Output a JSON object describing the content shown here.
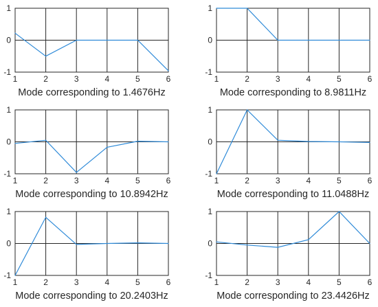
{
  "line_color": "#2e8ad8",
  "chart_data": [
    {
      "type": "line",
      "title": "Mode corresponding to 1.4676Hz",
      "x": [
        1,
        2,
        3,
        4,
        5,
        6
      ],
      "y": [
        0.22,
        -0.5,
        0,
        0,
        0,
        -0.96
      ],
      "xlim": [
        1,
        6
      ],
      "ylim": [
        -1,
        1
      ],
      "xticks": [
        "1",
        "2",
        "3",
        "4",
        "5",
        "6"
      ],
      "yticks": [
        "1",
        "0",
        "-1"
      ],
      "grid": true
    },
    {
      "type": "line",
      "title": "Mode corresponding to 8.9811Hz",
      "x": [
        1,
        2,
        3,
        4,
        5,
        6
      ],
      "y": [
        1,
        1,
        0,
        0,
        0,
        0
      ],
      "xlim": [
        1,
        6
      ],
      "ylim": [
        -1,
        1
      ],
      "xticks": [
        "1",
        "2",
        "3",
        "4",
        "5",
        "6"
      ],
      "yticks": [
        "1",
        "0",
        "-1"
      ],
      "grid": true
    },
    {
      "type": "line",
      "title": "Mode corresponding to 10.8942Hz",
      "x": [
        1,
        2,
        3,
        4,
        5,
        6
      ],
      "y": [
        -0.05,
        0.05,
        -0.96,
        -0.17,
        0.02,
        0
      ],
      "xlim": [
        1,
        6
      ],
      "ylim": [
        -1,
        1
      ],
      "xticks": [
        "1",
        "2",
        "3",
        "4",
        "5",
        "6"
      ],
      "yticks": [
        "1",
        "0",
        "-1"
      ],
      "grid": true
    },
    {
      "type": "line",
      "title": "Mode corresponding to 11.0488Hz",
      "x": [
        1,
        2,
        3,
        4,
        5,
        6
      ],
      "y": [
        -1,
        1,
        0.05,
        0.01,
        0,
        -0.02
      ],
      "xlim": [
        1,
        6
      ],
      "ylim": [
        -1,
        1
      ],
      "xticks": [
        "1",
        "2",
        "3",
        "4",
        "5",
        "6"
      ],
      "yticks": [
        "1",
        "0",
        "-1"
      ],
      "grid": true
    },
    {
      "type": "line",
      "title": "Mode corresponding to 20.2403Hz",
      "x": [
        1,
        2,
        3,
        4,
        5,
        6
      ],
      "y": [
        -1,
        0.82,
        -0.03,
        0,
        0.02,
        0
      ],
      "xlim": [
        1,
        6
      ],
      "ylim": [
        -1,
        1
      ],
      "xticks": [
        "1",
        "2",
        "3",
        "4",
        "5",
        "6"
      ],
      "yticks": [
        "1",
        "0",
        "-1"
      ],
      "grid": true
    },
    {
      "type": "line",
      "title": "Mode corresponding to 23.4426Hz",
      "x": [
        1,
        2,
        3,
        4,
        5,
        6
      ],
      "y": [
        0.05,
        -0.05,
        -0.12,
        0.12,
        1,
        0
      ],
      "xlim": [
        1,
        6
      ],
      "ylim": [
        -1,
        1
      ],
      "xticks": [
        "1",
        "2",
        "3",
        "4",
        "5",
        "6"
      ],
      "yticks": [
        "1",
        "0",
        "-1"
      ],
      "grid": true
    }
  ]
}
